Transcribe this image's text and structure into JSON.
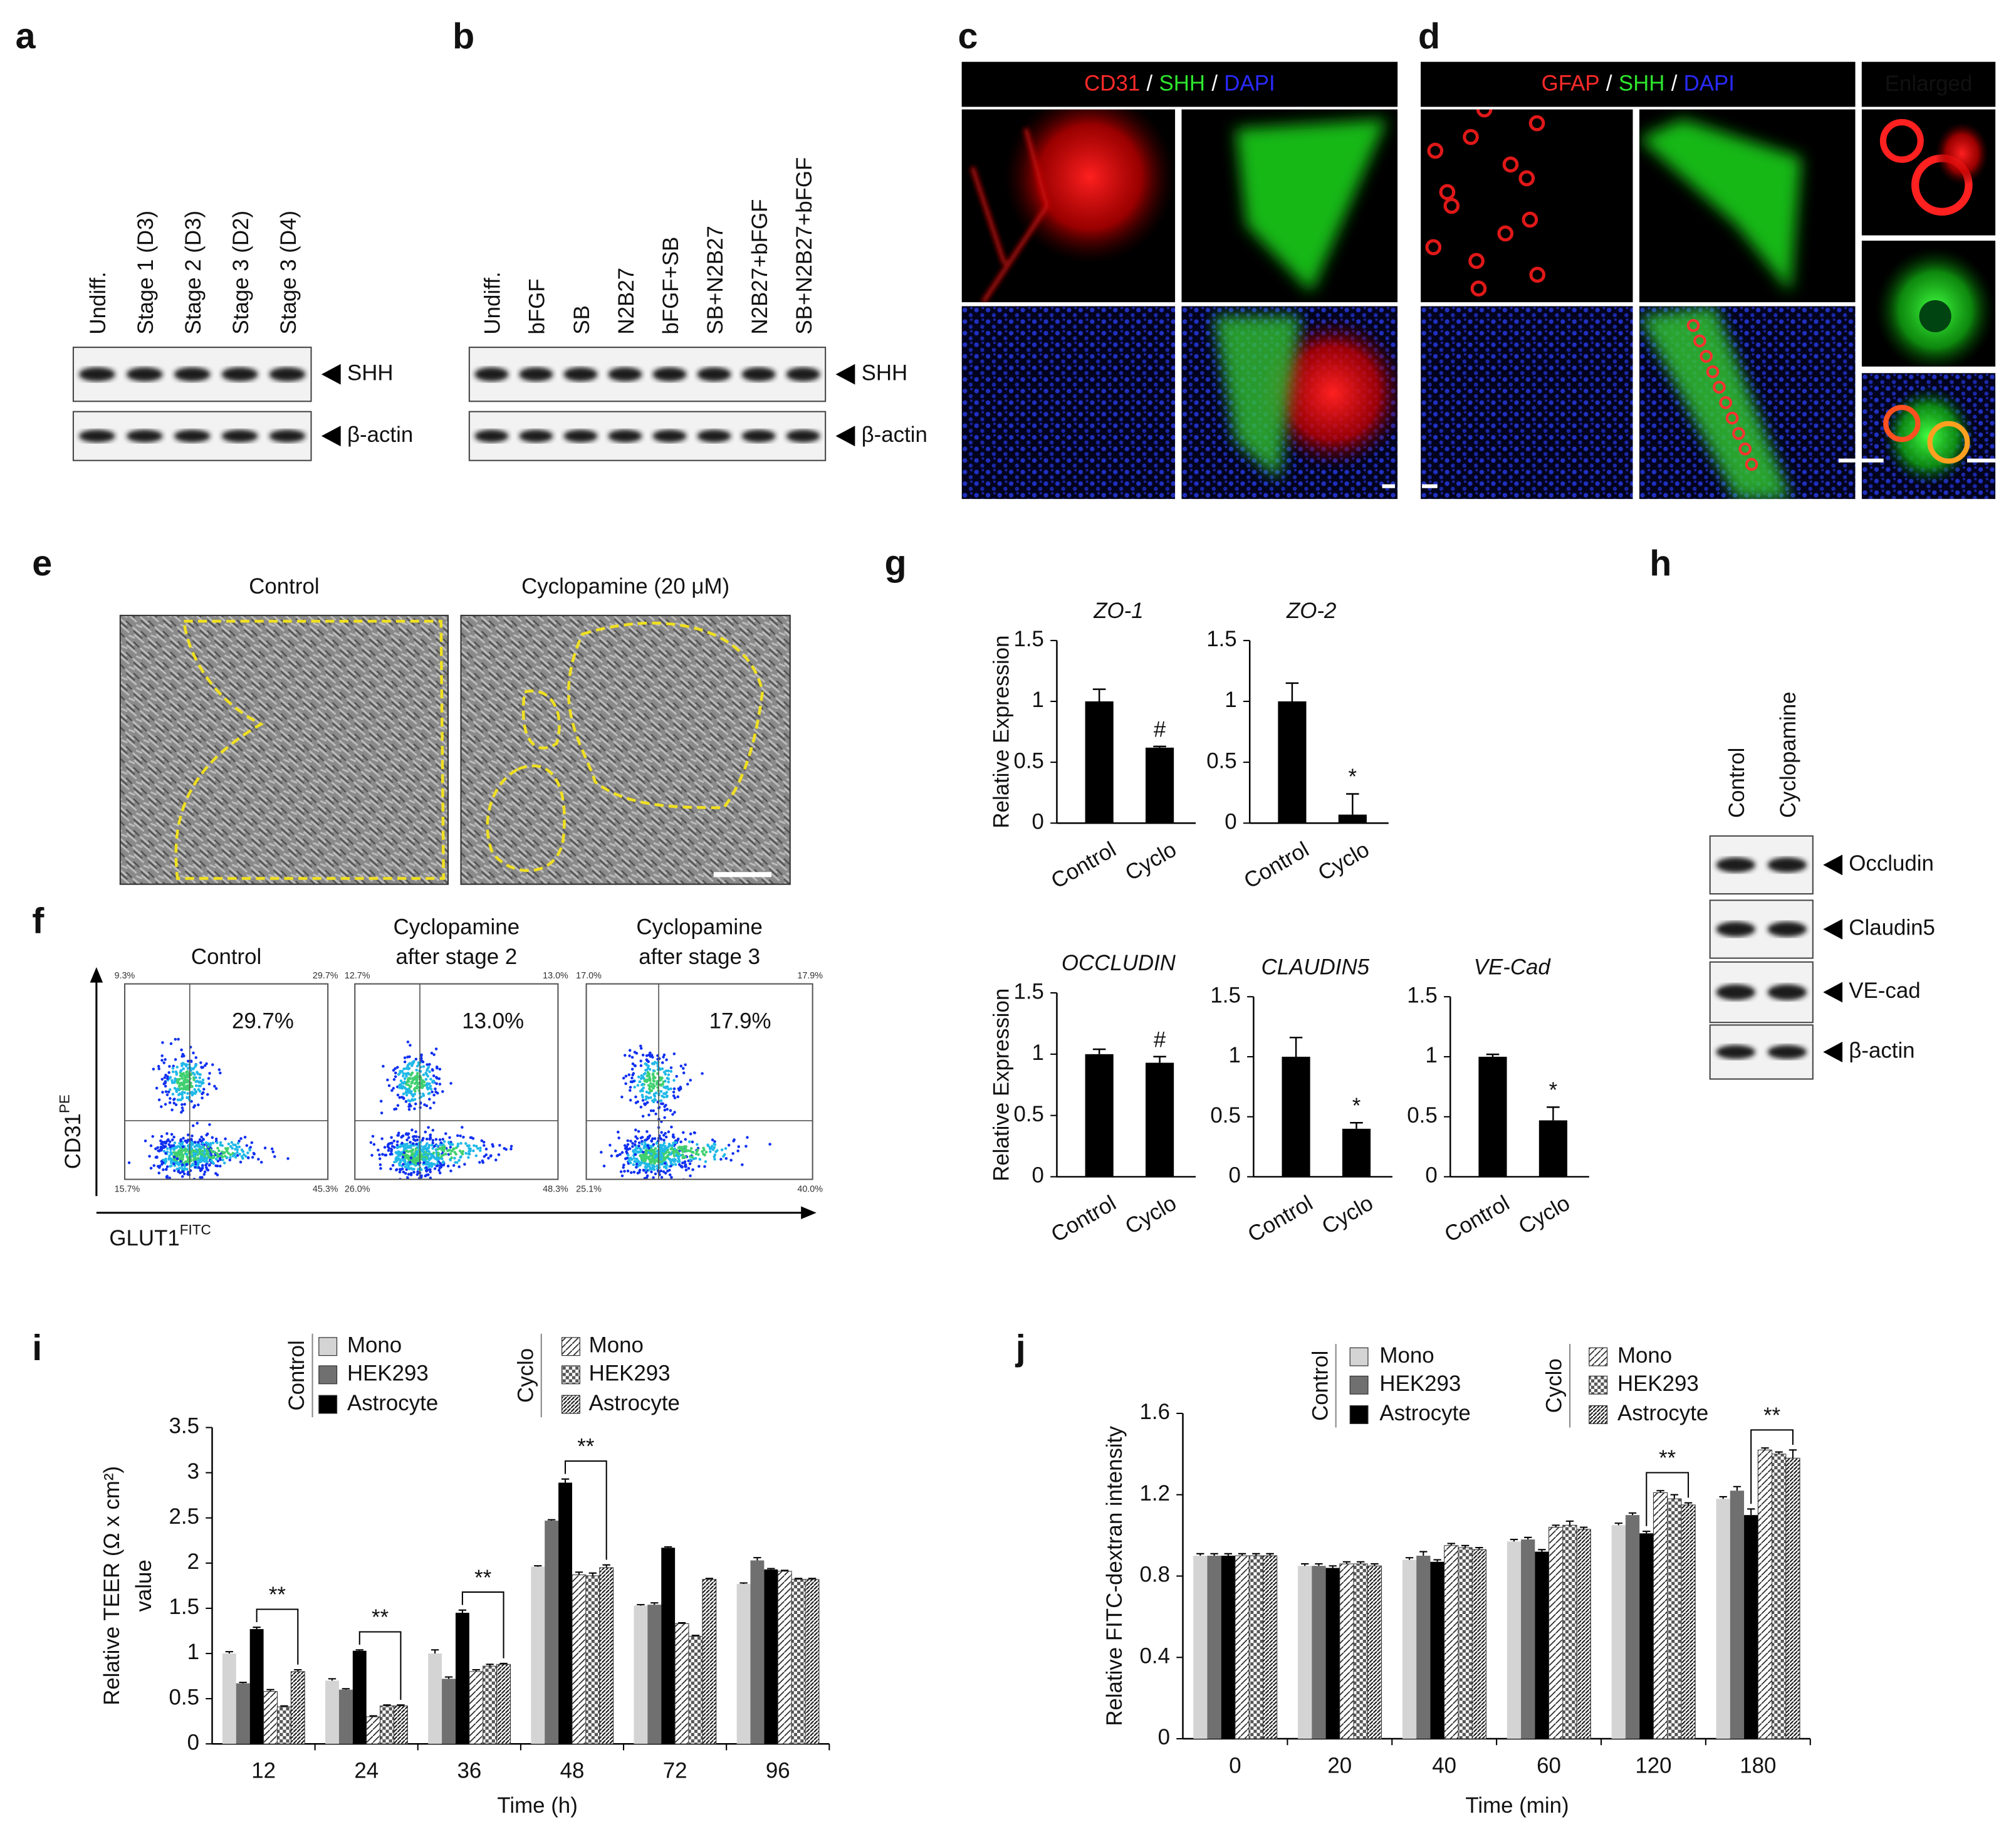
{
  "panel_labels": [
    "a",
    "b",
    "c",
    "d",
    "e",
    "f",
    "g",
    "h",
    "i",
    "j"
  ],
  "blots": [
    {
      "lanes": [
        "Undiff.",
        "Stage 1 (D3)",
        "Stage 2 (D3)",
        "Stage 3 (D2)",
        "Stage 3 (D4)"
      ],
      "bands": [
        "SHH",
        "β-actin"
      ]
    },
    {
      "lanes": [
        "Undiff.",
        "bFGF",
        "SB",
        "N2B27",
        "bFGF+SB",
        "SB+N2B27",
        "N2B27+bFGF",
        "SB+N2B27+bFGF"
      ],
      "bands": [
        "SHH",
        "β-actin"
      ]
    },
    {
      "lanes": [
        "Control",
        "Cyclopamine"
      ],
      "bands": [
        "Occludin",
        "Claudin5",
        "VE-cad",
        "β-actin"
      ]
    }
  ],
  "microscopy": {
    "c": {
      "header": [
        {
          "text": "CD31",
          "color": "#ff2a2a"
        },
        {
          "text": "/",
          "color": "#ffffff"
        },
        {
          "text": "SHH",
          "color": "#2ee62e"
        },
        {
          "text": "/",
          "color": "#ffffff"
        },
        {
          "text": "DAPI",
          "color": "#2a2aff"
        }
      ]
    },
    "d": {
      "header": [
        {
          "text": "GFAP",
          "color": "#ff2a2a"
        },
        {
          "text": "/",
          "color": "#ffffff"
        },
        {
          "text": "SHH",
          "color": "#2ee62e"
        },
        {
          "text": "/",
          "color": "#ffffff"
        },
        {
          "text": "DAPI",
          "color": "#2a2aff"
        }
      ],
      "enlarged": "Enlarged"
    }
  },
  "phase_contrast": {
    "titles": [
      "Control",
      "Cyclopamine (20 μM)"
    ]
  },
  "flow": {
    "titles": [
      [
        "Control"
      ],
      [
        "Cyclopamine",
        "after stage 2"
      ],
      [
        "Cyclopamine",
        "after stage 3"
      ]
    ],
    "gate_percent": [
      "29.7%",
      "13.0%",
      "17.9%"
    ],
    "quadrant_percent": [
      [
        "9.3%",
        "29.7%",
        "15.7%",
        "45.3%"
      ],
      [
        "12.7%",
        "13.0%",
        "26.0%",
        "48.3%"
      ],
      [
        "17.0%",
        "17.9%",
        "25.1%",
        "40.0%"
      ]
    ],
    "y_label": "CD31",
    "y_label_sup": "PE",
    "x_label": "GLUT1",
    "x_label_sup": "FITC"
  },
  "chart_data": [
    {
      "type": "bar",
      "title": "ZO-1",
      "ylabel": "Relative Expression",
      "categories": [
        "Control",
        "Cyclo"
      ],
      "values": [
        1,
        0.62
      ],
      "errors": [
        0.1,
        0.01
      ],
      "color": "#000000",
      "ylim": [
        0,
        1.5
      ],
      "yticks": [
        0,
        0.5,
        1,
        1.5
      ],
      "annotations": [
        {
          "category": "Cyclo",
          "text": "#"
        }
      ]
    },
    {
      "type": "bar",
      "title": "ZO-2",
      "categories": [
        "Control",
        "Cyclo"
      ],
      "values": [
        1,
        0.07
      ],
      "errors": [
        0.15,
        0.17
      ],
      "color": "#000000",
      "ylim": [
        0,
        1.5
      ],
      "yticks": [
        0,
        0.5,
        1,
        1.5
      ],
      "annotations": [
        {
          "category": "Cyclo",
          "text": "*"
        }
      ]
    },
    {
      "type": "bar",
      "title": "OCCLUDIN",
      "ylabel": "Relative Expression",
      "categories": [
        "Control",
        "Cyclo"
      ],
      "values": [
        1,
        0.93
      ],
      "errors": [
        0.04,
        0.05
      ],
      "color": "#000000",
      "ylim": [
        0,
        1.5
      ],
      "yticks": [
        0,
        0.5,
        1,
        1.5
      ],
      "annotations": [
        {
          "category": "Cyclo",
          "text": "#"
        }
      ]
    },
    {
      "type": "bar",
      "title": "CLAUDIN5",
      "categories": [
        "Control",
        "Cyclo"
      ],
      "values": [
        1,
        0.4
      ],
      "errors": [
        0.16,
        0.05
      ],
      "color": "#000000",
      "ylim": [
        0,
        1.5
      ],
      "yticks": [
        0,
        0.5,
        1,
        1.5
      ],
      "annotations": [
        {
          "category": "Cyclo",
          "text": "*"
        }
      ]
    },
    {
      "type": "bar",
      "title": "VE-Cad",
      "categories": [
        "Control",
        "Cyclo"
      ],
      "values": [
        1,
        0.47
      ],
      "errors": [
        0.02,
        0.11
      ],
      "color": "#000000",
      "ylim": [
        0,
        1.5
      ],
      "yticks": [
        0,
        0.5,
        1,
        1.5
      ],
      "annotations": [
        {
          "category": "Cyclo",
          "text": "*"
        }
      ]
    },
    {
      "type": "grouped_bar",
      "xlabel": "Time (h)",
      "ylabel": [
        "Relative TEER (Ω x cm²)",
        "value"
      ],
      "categories": [
        "12",
        "24",
        "36",
        "48",
        "72",
        "96"
      ],
      "ylim": [
        0,
        3.5
      ],
      "yticks": [
        0,
        0.5,
        1,
        1.5,
        2,
        2.5,
        3,
        3.5
      ],
      "series": [
        {
          "name": "Mono",
          "group": "Control",
          "color": "#d4d4d4",
          "pattern": "solid",
          "values": [
            1.0,
            0.7,
            1.0,
            1.96,
            1.53,
            1.77
          ],
          "errors": [
            0.02,
            0.02,
            0.04,
            0.01,
            0.01,
            0.01
          ]
        },
        {
          "name": "HEK293",
          "group": "Control",
          "color": "#707070",
          "pattern": "solid",
          "values": [
            0.67,
            0.6,
            0.72,
            2.47,
            1.54,
            2.03
          ],
          "errors": [
            0.01,
            0.01,
            0.02,
            0.01,
            0.02,
            0.03
          ]
        },
        {
          "name": "Astrocyte",
          "group": "Control",
          "color": "#000000",
          "pattern": "solid",
          "values": [
            1.27,
            1.03,
            1.45,
            2.89,
            2.17,
            1.93
          ],
          "errors": [
            0.02,
            0.01,
            0.03,
            0.04,
            0.01,
            0.01
          ]
        },
        {
          "name": "Mono",
          "group": "Cyclo",
          "color": "#ffffff",
          "pattern": "diag",
          "values": [
            0.58,
            0.3,
            0.8,
            1.87,
            1.33,
            1.91
          ],
          "errors": [
            0.02,
            0.01,
            0.02,
            0.03,
            0.01,
            0.01
          ]
        },
        {
          "name": "HEK293",
          "group": "Cyclo",
          "color": "#ffffff",
          "pattern": "check",
          "values": [
            0.41,
            0.42,
            0.86,
            1.86,
            1.19,
            1.82
          ],
          "errors": [
            0.01,
            0.01,
            0.02,
            0.03,
            0.01,
            0.01
          ]
        },
        {
          "name": "Astrocyte",
          "group": "Cyclo",
          "color": "#ffffff",
          "pattern": "dense",
          "values": [
            0.8,
            0.42,
            0.88,
            1.95,
            1.82,
            1.82
          ],
          "errors": [
            0.02,
            0.01,
            0.01,
            0.03,
            0.01,
            0.01
          ]
        }
      ],
      "annotations": [
        {
          "category": "12",
          "text": "**"
        },
        {
          "category": "24",
          "text": "**"
        },
        {
          "category": "36",
          "text": "**"
        },
        {
          "category": "48",
          "text": "**"
        }
      ]
    },
    {
      "type": "grouped_bar",
      "xlabel": "Time (min)",
      "ylabel": [
        "Relative FITC-dextran intensity"
      ],
      "categories": [
        "0",
        "20",
        "40",
        "60",
        "120",
        "180"
      ],
      "ylim": [
        0,
        1.6
      ],
      "yticks": [
        0,
        0.4,
        0.8,
        1.2,
        1.6
      ],
      "series": [
        {
          "name": "Mono",
          "group": "Control",
          "color": "#d4d4d4",
          "pattern": "solid",
          "values": [
            0.9,
            0.85,
            0.88,
            0.97,
            1.05,
            1.18
          ],
          "errors": [
            0.01,
            0.01,
            0.01,
            0.01,
            0.01,
            0.01
          ]
        },
        {
          "name": "HEK293",
          "group": "Control",
          "color": "#707070",
          "pattern": "solid",
          "values": [
            0.9,
            0.85,
            0.9,
            0.98,
            1.1,
            1.22
          ],
          "errors": [
            0.01,
            0.01,
            0.02,
            0.01,
            0.01,
            0.02
          ]
        },
        {
          "name": "Astrocyte",
          "group": "Control",
          "color": "#000000",
          "pattern": "solid",
          "values": [
            0.9,
            0.84,
            0.87,
            0.92,
            1.01,
            1.1
          ],
          "errors": [
            0.01,
            0.01,
            0.01,
            0.01,
            0.01,
            0.03
          ]
        },
        {
          "name": "Mono",
          "group": "Cyclo",
          "color": "#ffffff",
          "pattern": "diag",
          "values": [
            0.9,
            0.86,
            0.95,
            1.04,
            1.21,
            1.42
          ],
          "errors": [
            0.01,
            0.01,
            0.01,
            0.01,
            0.01,
            0.01
          ]
        },
        {
          "name": "HEK293",
          "group": "Cyclo",
          "color": "#ffffff",
          "pattern": "check",
          "values": [
            0.9,
            0.86,
            0.94,
            1.05,
            1.18,
            1.4
          ],
          "errors": [
            0.01,
            0.01,
            0.01,
            0.02,
            0.02,
            0.01
          ]
        },
        {
          "name": "Astrocyte",
          "group": "Cyclo",
          "color": "#ffffff",
          "pattern": "dense",
          "values": [
            0.9,
            0.85,
            0.93,
            1.03,
            1.15,
            1.38
          ],
          "errors": [
            0.01,
            0.01,
            0.01,
            0.01,
            0.01,
            0.04
          ]
        }
      ],
      "annotations": [
        {
          "category": "120",
          "text": "**"
        },
        {
          "category": "180",
          "text": "**"
        }
      ]
    }
  ]
}
